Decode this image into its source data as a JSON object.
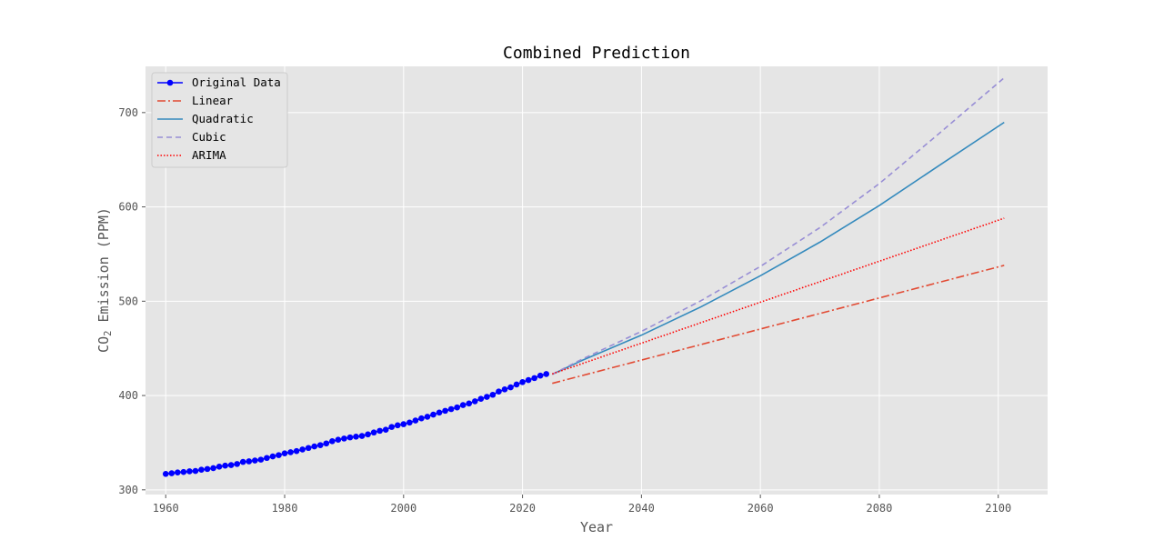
{
  "chart_data": {
    "type": "line",
    "title": "Combined Prediction",
    "xlabel": "Year",
    "ylabel_prefix": "CO",
    "ylabel_sub": "2",
    "ylabel_suffix": " Emission (PPM)",
    "xlim": [
      1956.6,
      2108.3
    ],
    "ylim": [
      295.0,
      749.0
    ],
    "xticks": [
      1960,
      1980,
      2000,
      2020,
      2040,
      2060,
      2080,
      2100
    ],
    "yticks": [
      300,
      400,
      500,
      600,
      700
    ],
    "grid": true,
    "legend_position": "top-left",
    "colors": {
      "background": "#e5e5e5",
      "grid": "#ffffff",
      "original": "#0000ff",
      "linear": "#e24a33",
      "quadratic": "#348abd",
      "cubic": "#988ed5",
      "arima": "#ff0000"
    },
    "series": [
      {
        "name": "Original Data",
        "key": "original",
        "style": "line-marker",
        "x": [
          1960,
          1961,
          1962,
          1963,
          1964,
          1965,
          1966,
          1967,
          1968,
          1969,
          1970,
          1971,
          1972,
          1973,
          1974,
          1975,
          1976,
          1977,
          1978,
          1979,
          1980,
          1981,
          1982,
          1983,
          1984,
          1985,
          1986,
          1987,
          1988,
          1989,
          1990,
          1991,
          1992,
          1993,
          1994,
          1995,
          1996,
          1997,
          1998,
          1999,
          2000,
          2001,
          2002,
          2003,
          2004,
          2005,
          2006,
          2007,
          2008,
          2009,
          2010,
          2011,
          2012,
          2013,
          2014,
          2015,
          2016,
          2017,
          2018,
          2019,
          2020,
          2021,
          2022,
          2023,
          2024
        ],
        "y": [
          316.9,
          317.6,
          318.4,
          318.9,
          319.6,
          320.0,
          321.3,
          322.1,
          323.0,
          324.6,
          325.7,
          326.3,
          327.4,
          329.6,
          330.2,
          331.1,
          332.0,
          333.8,
          335.4,
          336.8,
          338.7,
          339.9,
          341.1,
          342.8,
          344.4,
          346.0,
          347.4,
          349.2,
          351.6,
          353.1,
          354.4,
          355.6,
          356.4,
          357.1,
          358.8,
          360.8,
          362.6,
          363.7,
          366.7,
          368.4,
          369.6,
          371.3,
          373.5,
          375.8,
          377.5,
          379.8,
          381.9,
          383.8,
          385.6,
          387.4,
          389.9,
          391.6,
          393.9,
          396.5,
          398.6,
          400.8,
          404.2,
          406.5,
          408.7,
          411.7,
          414.2,
          416.4,
          418.5,
          421.1,
          422.8
        ]
      },
      {
        "name": "Linear",
        "key": "linear",
        "style": "dashdot",
        "x": [
          2025,
          2101
        ],
        "y": [
          412.9,
          538.0
        ]
      },
      {
        "name": "Quadratic",
        "key": "quadratic",
        "style": "solid",
        "x": [
          2025,
          2030,
          2040,
          2050,
          2060,
          2070,
          2080,
          2090,
          2101
        ],
        "y": [
          422.5,
          437.2,
          464.0,
          494.0,
          527.0,
          562.6,
          601.5,
          643.6,
          689.6
        ]
      },
      {
        "name": "Cubic",
        "key": "cubic",
        "style": "dashed",
        "x": [
          2025,
          2030,
          2040,
          2050,
          2060,
          2070,
          2080,
          2090,
          2101
        ],
        "y": [
          422.5,
          438.5,
          468.0,
          500.5,
          536.9,
          578.0,
          624.7,
          677.5,
          736.9
        ]
      },
      {
        "name": "ARIMA",
        "key": "arima",
        "style": "dotted",
        "x": [
          2025,
          2101
        ],
        "y": [
          422.9,
          588.0
        ]
      }
    ]
  }
}
